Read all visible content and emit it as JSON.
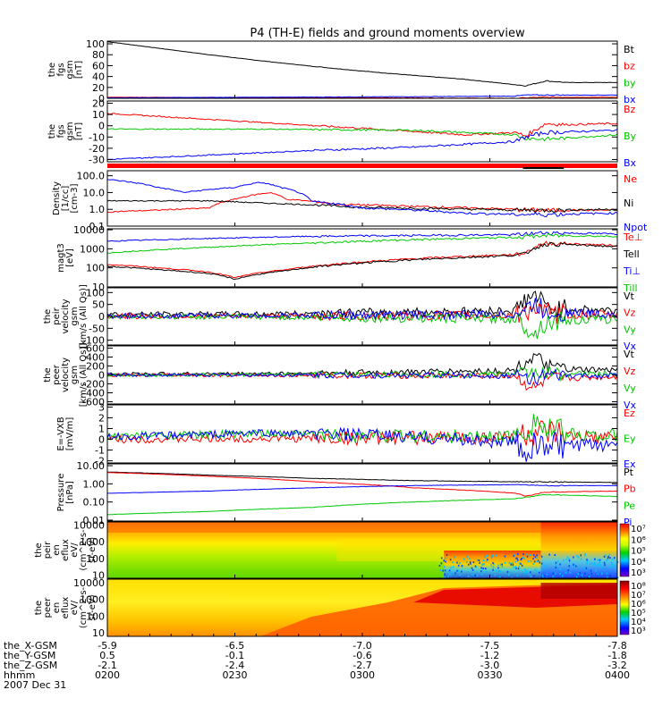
{
  "title": "P4 (TH-E) fields and ground moments overview",
  "colors": {
    "black": "#000000",
    "red": "#ff0000",
    "green": "#00c800",
    "blue": "#0000ff"
  },
  "chart_data": [
    {
      "type": "line",
      "ylabel": [
        "the",
        "fgs",
        "gsm",
        "[nT]"
      ],
      "yticks": [
        "100",
        "80",
        "60",
        "40",
        "20",
        "0"
      ],
      "legend": [
        {
          "text": "Bt",
          "color": "#000000"
        },
        {
          "text": "bz",
          "color": "#ff0000"
        },
        {
          "text": "by",
          "color": "#00c800"
        },
        {
          "text": "bx",
          "color": "#0000ff"
        }
      ],
      "series": [
        {
          "name": "Bt",
          "color": "#000000",
          "x": [
            0,
            0.1,
            0.2,
            0.3,
            0.4,
            0.5,
            0.6,
            0.7,
            0.75,
            0.8,
            0.82,
            0.86,
            0.9,
            1.0
          ],
          "values": [
            104,
            92,
            80,
            69,
            59,
            50,
            42,
            35,
            30,
            25,
            23,
            32,
            29,
            29
          ]
        },
        {
          "name": "bz",
          "color": "#ff0000",
          "x": [
            0,
            0.5,
            0.8,
            0.82,
            0.86,
            1.0
          ],
          "values": [
            2,
            1,
            0,
            1,
            2,
            2
          ]
        },
        {
          "name": "by",
          "color": "#00c800",
          "x": [
            0,
            0.5,
            1.0
          ],
          "values": [
            -2,
            -1,
            0
          ]
        },
        {
          "name": "bx",
          "color": "#0000ff",
          "x": [
            0,
            0.3,
            0.6,
            0.8,
            0.82,
            1.0
          ],
          "values": [
            1,
            2,
            3,
            4,
            6,
            6
          ]
        }
      ]
    },
    {
      "type": "line",
      "ylabel": [
        "the",
        "fgs",
        "gsm",
        "[nT]"
      ],
      "yticks": [
        "20",
        "10",
        "0",
        "-10",
        "-20",
        "-30"
      ],
      "legend": [
        {
          "text": "Bz",
          "color": "#ff0000"
        },
        {
          "text": "By",
          "color": "#00c800"
        },
        {
          "text": "Bx",
          "color": "#0000ff"
        }
      ],
      "series": [
        {
          "name": "Bz",
          "color": "#ff0000",
          "x": [
            0,
            0.15,
            0.3,
            0.45,
            0.6,
            0.7,
            0.8,
            0.82,
            0.86,
            0.9,
            1.0
          ],
          "values": [
            11,
            7,
            3,
            -1,
            -5,
            -8,
            -6,
            -9,
            2,
            1,
            2
          ]
        },
        {
          "name": "By",
          "color": "#00c800",
          "x": [
            0,
            0.3,
            0.6,
            0.8,
            0.82,
            0.86,
            1.0
          ],
          "values": [
            -3,
            -3,
            -4,
            -8,
            -11,
            -12,
            -8
          ]
        },
        {
          "name": "Bx",
          "color": "#0000ff",
          "x": [
            0,
            0.2,
            0.4,
            0.6,
            0.8,
            0.82,
            0.86,
            1.0
          ],
          "values": [
            -30,
            -26,
            -22,
            -19,
            -14,
            -10,
            -6,
            -4
          ]
        }
      ]
    },
    {
      "type": "line",
      "ylabel": [
        "Density",
        "[1/cc]",
        "[cm-3]"
      ],
      "yticks": [
        "100.0",
        "10.0",
        "1.0",
        "0.1"
      ],
      "legend": [
        {
          "text": "Ne",
          "color": "#ff0000"
        },
        {
          "text": "Ni",
          "color": "#000000"
        },
        {
          "text": "Npot",
          "color": "#0000ff"
        }
      ],
      "series": [
        {
          "name": "Ne",
          "color": "#ff0000",
          "x": [
            0,
            0.1,
            0.2,
            0.25,
            0.32,
            0.35,
            0.45,
            0.6,
            0.8,
            0.86,
            1.0
          ],
          "values": [
            0.7,
            0.9,
            1.2,
            4,
            10,
            4,
            2,
            1.5,
            1.0,
            0.9,
            0.9
          ]
        },
        {
          "name": "Ni",
          "color": "#000000",
          "x": [
            0,
            0.2,
            0.3,
            0.5,
            0.8,
            0.86,
            1.0
          ],
          "values": [
            3.2,
            3.2,
            2.4,
            1.3,
            0.9,
            0.9,
            1.0
          ]
        },
        {
          "name": "Npot",
          "color": "#0000ff",
          "x": [
            0,
            0.1,
            0.15,
            0.25,
            0.3,
            0.34,
            0.4,
            0.5,
            0.7,
            0.8,
            0.86,
            1.0
          ],
          "values": [
            60,
            20,
            10,
            20,
            40,
            20,
            3,
            1.2,
            0.6,
            0.5,
            0.5,
            0.6
          ]
        }
      ]
    },
    {
      "type": "line",
      "ylabel": [
        "magt3",
        "[eV]"
      ],
      "yticks": [
        "10000",
        "1000",
        "100",
        "10"
      ],
      "legend": [
        {
          "text": "Te⊥",
          "color": "#ff0000"
        },
        {
          "text": "Tell",
          "color": "#000000"
        },
        {
          "text": "Ti⊥",
          "color": "#0000ff"
        },
        {
          "text": "Till",
          "color": "#00c800"
        }
      ],
      "series": [
        {
          "name": "Te⊥",
          "color": "#ff0000",
          "x": [
            0,
            0.1,
            0.2,
            0.25,
            0.35,
            0.5,
            0.7,
            0.8,
            0.82,
            0.86,
            1.0
          ],
          "values": [
            150,
            100,
            60,
            30,
            80,
            200,
            400,
            500,
            600,
            2000,
            1500
          ]
        },
        {
          "name": "Tell",
          "color": "#000000",
          "x": [
            0,
            0.1,
            0.2,
            0.25,
            0.35,
            0.5,
            0.7,
            0.8,
            0.82,
            0.86,
            1.0
          ],
          "values": [
            120,
            80,
            50,
            25,
            70,
            180,
            350,
            450,
            550,
            1800,
            1300
          ]
        },
        {
          "name": "Ti⊥",
          "color": "#0000ff",
          "x": [
            0,
            0.2,
            0.4,
            0.6,
            0.8,
            0.86,
            1.0
          ],
          "values": [
            2500,
            3500,
            4500,
            5000,
            5500,
            7000,
            6000
          ]
        },
        {
          "name": "Till",
          "color": "#00c800",
          "x": [
            0,
            0.2,
            0.4,
            0.6,
            0.8,
            0.86,
            1.0
          ],
          "values": [
            600,
            1200,
            2000,
            3000,
            4000,
            5000,
            4500
          ]
        }
      ]
    },
    {
      "type": "line",
      "ylabel": [
        "the",
        "peir",
        "velocity",
        "gsm",
        "[km/s (All Qs)]"
      ],
      "yticks": [
        "100",
        "50",
        "0",
        "-50",
        "-100"
      ],
      "legend": [
        {
          "text": "Vt",
          "color": "#000000"
        },
        {
          "text": "Vz",
          "color": "#ff0000"
        },
        {
          "text": "Vy",
          "color": "#00c800"
        },
        {
          "text": "Vx",
          "color": "#0000ff"
        }
      ],
      "series": [
        {
          "name": "Vt",
          "color": "#000000",
          "x": [
            0,
            0.3,
            0.5,
            0.7,
            0.8,
            0.82,
            0.84,
            0.86,
            0.9,
            1.0
          ],
          "values": [
            8,
            10,
            15,
            20,
            25,
            70,
            90,
            40,
            30,
            25
          ]
        },
        {
          "name": "Vz",
          "color": "#ff0000",
          "x": [
            0,
            0.5,
            0.8,
            0.82,
            0.84,
            0.86,
            1.0
          ],
          "values": [
            0,
            2,
            5,
            20,
            40,
            10,
            5
          ]
        },
        {
          "name": "Vy",
          "color": "#00c800",
          "x": [
            0,
            0.5,
            0.8,
            0.82,
            0.84,
            0.86,
            1.0
          ],
          "values": [
            0,
            -5,
            -10,
            -40,
            -70,
            -20,
            -10
          ]
        },
        {
          "name": "Vx",
          "color": "#0000ff",
          "x": [
            0,
            0.5,
            0.8,
            0.82,
            0.84,
            0.86,
            1.0
          ],
          "values": [
            2,
            5,
            10,
            30,
            50,
            20,
            10
          ]
        }
      ]
    },
    {
      "type": "line",
      "ylabel": [
        "the",
        "peer",
        "velocity",
        "gsm",
        "[km/s (All Qs)]"
      ],
      "yticks": [
        "600",
        "400",
        "200",
        "0",
        "-200",
        "-400",
        "-600"
      ],
      "legend": [
        {
          "text": "Vt",
          "color": "#000000"
        },
        {
          "text": "Vz",
          "color": "#ff0000"
        },
        {
          "text": "Vy",
          "color": "#00c800"
        },
        {
          "text": "Vx",
          "color": "#0000ff"
        }
      ],
      "series": [
        {
          "name": "Vt",
          "color": "#000000",
          "x": [
            0,
            0.3,
            0.5,
            0.7,
            0.8,
            0.82,
            0.84,
            0.86,
            0.9,
            1.0
          ],
          "values": [
            20,
            30,
            50,
            80,
            100,
            300,
            400,
            200,
            120,
            100
          ]
        },
        {
          "name": "Vz",
          "color": "#ff0000",
          "x": [
            0,
            0.5,
            0.8,
            0.82,
            0.84,
            0.86,
            1.0
          ],
          "values": [
            0,
            -10,
            -20,
            -200,
            -320,
            -100,
            -30
          ]
        },
        {
          "name": "Vy",
          "color": "#00c800",
          "x": [
            0,
            0.5,
            0.8,
            0.82,
            0.84,
            0.86,
            1.0
          ],
          "values": [
            0,
            10,
            20,
            50,
            80,
            30,
            20
          ]
        },
        {
          "name": "Vx",
          "color": "#0000ff",
          "x": [
            0,
            0.5,
            0.8,
            0.82,
            0.84,
            0.86,
            1.0
          ],
          "values": [
            0,
            -5,
            -10,
            -50,
            -80,
            -30,
            -10
          ]
        }
      ]
    },
    {
      "type": "line",
      "ylabel": [
        "E=-VXB",
        "[mV/m]"
      ],
      "yticks": [
        "3",
        "2",
        "1",
        "0",
        "-1",
        "-2"
      ],
      "legend": [
        {
          "text": "Ez",
          "color": "#ff0000"
        },
        {
          "text": "Ey",
          "color": "#00c800"
        },
        {
          "text": "Ex",
          "color": "#0000ff"
        }
      ],
      "series": [
        {
          "name": "Ez",
          "color": "#ff0000",
          "x": [
            0,
            0.5,
            0.8,
            0.84,
            0.9,
            1.0
          ],
          "values": [
            0,
            0.1,
            0.2,
            0.5,
            0.2,
            0.1
          ]
        },
        {
          "name": "Ey",
          "color": "#00c800",
          "x": [
            0,
            0.3,
            0.5,
            0.7,
            0.8,
            0.82,
            0.84,
            0.86,
            0.9,
            1.0
          ],
          "values": [
            0.3,
            0.5,
            0.4,
            0.2,
            0.3,
            1.0,
            2.0,
            0.8,
            0.5,
            0.3
          ]
        },
        {
          "name": "Ex",
          "color": "#0000ff",
          "x": [
            0,
            0.3,
            0.5,
            0.7,
            0.8,
            0.82,
            0.86,
            0.9,
            1.0
          ],
          "values": [
            0.2,
            0.6,
            0.4,
            0.0,
            -0.3,
            -1.0,
            -0.5,
            -0.7,
            -0.4
          ]
        }
      ]
    },
    {
      "type": "line",
      "ylabel": [
        "Pressure",
        "[nPa]"
      ],
      "yticks": [
        "10.00",
        "1.00",
        "0.10",
        "0.01"
      ],
      "legend": [
        {
          "text": "Pt",
          "color": "#000000"
        },
        {
          "text": "Pb",
          "color": "#ff0000"
        },
        {
          "text": "Pe",
          "color": "#00c800"
        },
        {
          "text": "Pi",
          "color": "#0000ff"
        }
      ],
      "series": [
        {
          "name": "Pt",
          "color": "#000000",
          "x": [
            0,
            0.2,
            0.4,
            0.6,
            0.8,
            1.0
          ],
          "values": [
            4.5,
            3.0,
            2.0,
            1.5,
            1.3,
            1.2
          ]
        },
        {
          "name": "Pb",
          "color": "#ff0000",
          "x": [
            0,
            0.2,
            0.4,
            0.6,
            0.8,
            0.82,
            0.86,
            1.0
          ],
          "values": [
            4.2,
            2.6,
            1.3,
            0.6,
            0.3,
            0.2,
            0.35,
            0.4
          ]
        },
        {
          "name": "Pe",
          "color": "#00c800",
          "x": [
            0,
            0.2,
            0.4,
            0.6,
            0.8,
            0.86,
            1.0
          ],
          "values": [
            0.02,
            0.03,
            0.05,
            0.1,
            0.15,
            0.25,
            0.2
          ]
        },
        {
          "name": "Pi",
          "color": "#0000ff",
          "x": [
            0,
            0.2,
            0.4,
            0.6,
            0.8,
            0.86,
            1.0
          ],
          "values": [
            0.3,
            0.4,
            0.6,
            0.8,
            0.9,
            0.8,
            0.8
          ]
        }
      ]
    },
    {
      "type": "heatmap",
      "ylabel": [
        "the",
        "peir",
        "en",
        "eflux",
        "eV/",
        "(cm^2-s-",
        "sr-eV)"
      ],
      "yticks": [
        "10000",
        "1000",
        "100",
        "10"
      ],
      "colorbar_ticks": [
        "10⁷",
        "10⁶",
        "10⁵",
        "10⁴",
        "10³"
      ]
    },
    {
      "type": "heatmap",
      "ylabel": [
        "the",
        "peer",
        "en",
        "eflux",
        "eV/",
        "(cm^2-s-",
        "sr-eV)"
      ],
      "yticks": [
        "10000",
        "1000",
        "100",
        "10"
      ],
      "colorbar_ticks": [
        "10⁸",
        "10⁷",
        "10⁶",
        "10⁵",
        "10⁴",
        "10³"
      ]
    }
  ],
  "xaxis": {
    "ticks": [
      "0200",
      "0230",
      "0300",
      "0330",
      "0400"
    ],
    "row_labels": [
      "the_X-GSM",
      "the_Y-GSM",
      "the_Z-GSM",
      "hhmm",
      "2007 Dec 31"
    ],
    "rows": [
      [
        "-5.9",
        "-6.5",
        "-7.0",
        "-7.5",
        "-7.8"
      ],
      [
        "0.5",
        "-0.1",
        "-0.6",
        "-1.2",
        "-1.8"
      ],
      [
        "-2.1",
        "-2.4",
        "-2.7",
        "-3.0",
        "-3.2"
      ]
    ]
  }
}
